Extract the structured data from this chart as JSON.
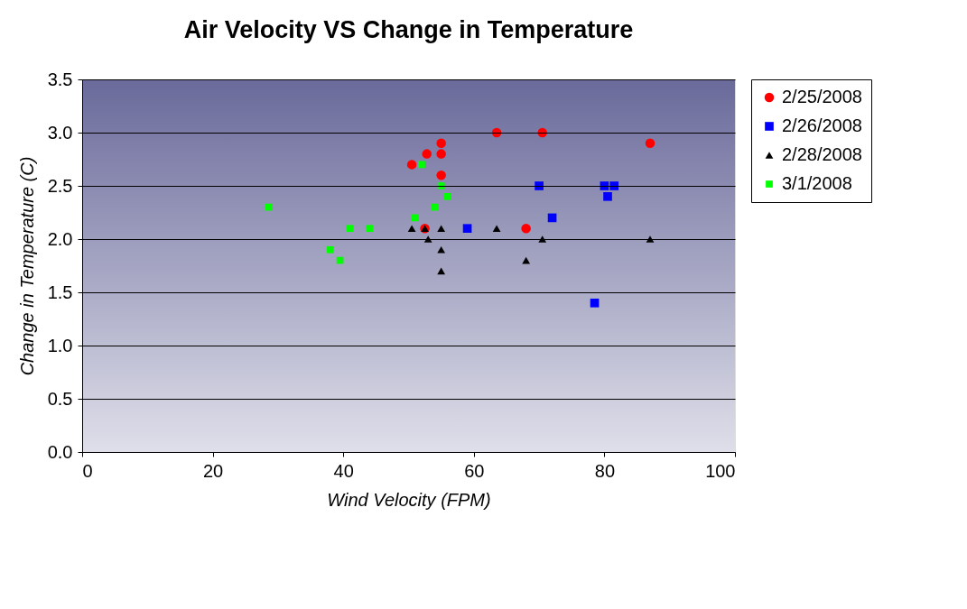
{
  "chart_data": {
    "type": "scatter",
    "title": "Air Velocity VS Change in Temperature",
    "xlabel": "Wind Velocity (FPM)",
    "ylabel": "Change in Temperature (C)",
    "xlim": [
      0,
      100
    ],
    "xticks": [
      0,
      20,
      40,
      60,
      80,
      100
    ],
    "ylim": [
      0,
      3.5
    ],
    "yticks": [
      {
        "value": 0,
        "label": "0.0"
      },
      {
        "value": 0.5,
        "label": "0.5"
      },
      {
        "value": 1,
        "label": "1.0"
      },
      {
        "value": 1.5,
        "label": "1.5"
      },
      {
        "value": 2,
        "label": "2.0"
      },
      {
        "value": 2.5,
        "label": "2.5"
      },
      {
        "value": 3,
        "label": "3.0"
      },
      {
        "value": 3.5,
        "label": "3.5"
      }
    ],
    "grid": "y",
    "legend": "right",
    "series": [
      {
        "name": "2/25/2008",
        "color": "#ff0000",
        "marker": "circle",
        "x": [
          50.5,
          52.8,
          55,
          55,
          55,
          52.5,
          63.5,
          70.5,
          87,
          68
        ],
        "values": [
          2.7,
          2.8,
          2.9,
          2.8,
          2.6,
          2.1,
          3.0,
          3.0,
          2.9,
          2.1
        ]
      },
      {
        "name": "2/26/2008",
        "color": "#0000ff",
        "marker": "square",
        "x": [
          59,
          70,
          72,
          80,
          81.5,
          80.5,
          78.5
        ],
        "values": [
          2.1,
          2.5,
          2.2,
          2.5,
          2.5,
          2.4,
          1.4
        ]
      },
      {
        "name": "2/28/2008",
        "color": "#000000",
        "marker": "triangle",
        "x": [
          50.5,
          52.5,
          53,
          55,
          55,
          55,
          63.5,
          70.5,
          68,
          87
        ],
        "values": [
          2.1,
          2.1,
          2.0,
          2.1,
          1.9,
          1.7,
          2.1,
          2.0,
          1.8,
          2.0
        ]
      },
      {
        "name": "3/1/2008",
        "color": "#00ff00",
        "marker": "square",
        "x": [
          28.5,
          38,
          39.5,
          41,
          44,
          51,
          52,
          54,
          55,
          56
        ],
        "values": [
          2.3,
          1.9,
          1.8,
          2.1,
          2.1,
          2.2,
          2.7,
          2.3,
          2.5,
          2.4
        ]
      }
    ]
  }
}
